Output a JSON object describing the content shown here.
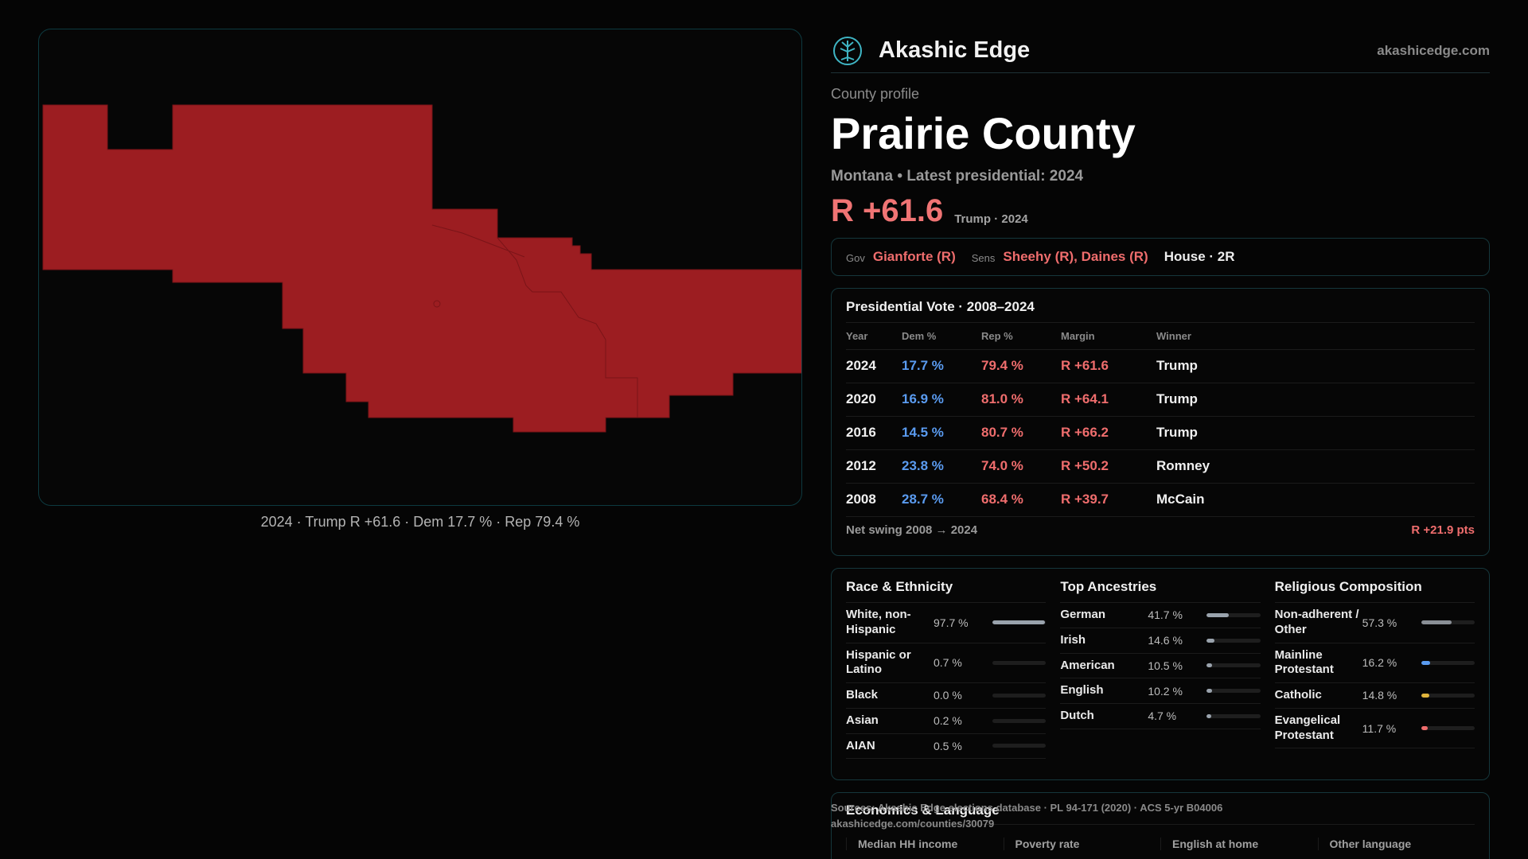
{
  "map": {
    "caption": "2024 · Trump R +61.6 · Dem 17.7 % · Rep 79.4 %",
    "fill_color": "#9c1d21"
  },
  "brand": {
    "name": "Akashic Edge",
    "url": "akashicedge.com",
    "logo_icon": "tree-logo-icon"
  },
  "profile": {
    "kicker": "County profile",
    "title": "Prairie County",
    "subtitle": "Montana • Latest presidential: 2024",
    "margin": "R +61.6",
    "margin_note": "Trump · 2024"
  },
  "officials": {
    "gov_label": "Gov",
    "gov_value": "Gianforte (R)",
    "sens_label": "Sens",
    "sens_value": "Sheehy (R), Daines (R)",
    "house_value": "House · 2R"
  },
  "presidential": {
    "title": "Presidential Vote · 2008–2024",
    "headers": [
      "Year",
      "Dem %",
      "Rep %",
      "Margin",
      "Winner"
    ],
    "rows": [
      {
        "year": "2024",
        "dem": "17.7 %",
        "rep": "79.4 %",
        "margin": "R +61.6",
        "winner": "Trump"
      },
      {
        "year": "2020",
        "dem": "16.9 %",
        "rep": "81.0 %",
        "margin": "R +64.1",
        "winner": "Trump"
      },
      {
        "year": "2016",
        "dem": "14.5 %",
        "rep": "80.7 %",
        "margin": "R +66.2",
        "winner": "Trump"
      },
      {
        "year": "2012",
        "dem": "23.8 %",
        "rep": "74.0 %",
        "margin": "R +50.2",
        "winner": "Romney"
      },
      {
        "year": "2008",
        "dem": "28.7 %",
        "rep": "68.4 %",
        "margin": "R +39.7",
        "winner": "McCain"
      }
    ],
    "swing_label": "Net swing 2008 → 2024",
    "swing_value": "R +21.9 pts"
  },
  "race": {
    "title": "Race & Ethnicity",
    "items": [
      {
        "name": "White, non-Hispanic",
        "value": "97.7 %",
        "pct": 97.7,
        "color": "#9aa3ad"
      },
      {
        "name": "Hispanic or Latino",
        "value": "0.7 %",
        "pct": 0.7,
        "color": "#9aa3ad"
      },
      {
        "name": "Black",
        "value": "0.0 %",
        "pct": 0.0,
        "color": "#9aa3ad"
      },
      {
        "name": "Asian",
        "value": "0.2 %",
        "pct": 0.2,
        "color": "#9aa3ad"
      },
      {
        "name": "AIAN",
        "value": "0.5 %",
        "pct": 0.5,
        "color": "#9aa3ad"
      }
    ]
  },
  "ancestry": {
    "title": "Top Ancestries",
    "items": [
      {
        "name": "German",
        "value": "41.7 %",
        "pct": 41.7,
        "color": "#9aa3ad"
      },
      {
        "name": "Irish",
        "value": "14.6 %",
        "pct": 14.6,
        "color": "#9aa3ad"
      },
      {
        "name": "American",
        "value": "10.5 %",
        "pct": 10.5,
        "color": "#9aa3ad"
      },
      {
        "name": "English",
        "value": "10.2 %",
        "pct": 10.2,
        "color": "#9aa3ad"
      },
      {
        "name": "Dutch",
        "value": "4.7 %",
        "pct": 4.7,
        "color": "#9aa3ad"
      }
    ]
  },
  "religion": {
    "title": "Religious Composition",
    "items": [
      {
        "name": "Non-adherent / Other",
        "value": "57.3 %",
        "pct": 57.3,
        "color": "#8a8f96"
      },
      {
        "name": "Mainline Protestant",
        "value": "16.2 %",
        "pct": 16.2,
        "color": "#5a9bf0"
      },
      {
        "name": "Catholic",
        "value": "14.8 %",
        "pct": 14.8,
        "color": "#e0b43c"
      },
      {
        "name": "Evangelical Protestant",
        "value": "11.7 %",
        "pct": 11.7,
        "color": "#ef6d6d"
      }
    ]
  },
  "economics": {
    "title": "Economics & Language",
    "columns": [
      "Median HH income",
      "Poverty rate",
      "English at home",
      "Other language"
    ]
  },
  "sources": {
    "line1": "Sources: Akashic Edge elections database · PL 94-171 (2020) · ACS 5-yr B04006",
    "line2": "akashicedge.com/counties/30079"
  }
}
